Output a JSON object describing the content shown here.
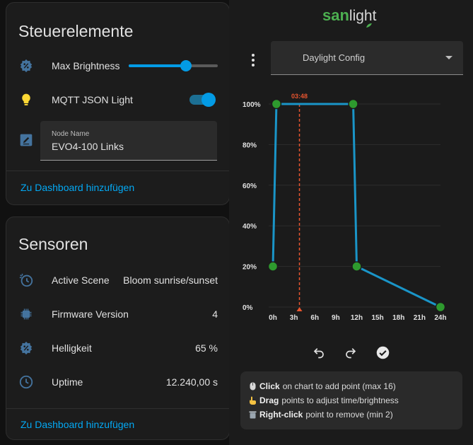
{
  "controls_card": {
    "title": "Steuerelemente",
    "max_brightness": {
      "label": "Max Brightness",
      "value_fraction": 0.64,
      "icon": "brightness-percent-icon"
    },
    "mqtt_light": {
      "label": "MQTT JSON Light",
      "state": "on",
      "icon": "lightbulb-icon"
    },
    "node_name": {
      "label": "Node Name",
      "value": "EVO4-100 Links",
      "icon": "form-textbox-icon"
    },
    "link": "Zu Dashboard hinzufügen"
  },
  "sensors_card": {
    "title": "Sensoren",
    "rows": [
      {
        "label": "Active Scene",
        "value": "Bloom sunrise/sunset",
        "icon": "clock-scene-icon"
      },
      {
        "label": "Firmware Version",
        "value": "4",
        "icon": "chip-icon"
      },
      {
        "label": "Helligkeit",
        "value": "65 %",
        "icon": "brightness-percent-icon"
      },
      {
        "label": "Uptime",
        "value": "12.240,00 s",
        "icon": "clock-outline-icon"
      }
    ],
    "link": "Zu Dashboard hinzufügen"
  },
  "panel": {
    "logo_san": "san",
    "logo_light": "light",
    "select_value": "Daylight Config",
    "help": {
      "line1_bold": "Click",
      "line1_rest": "on chart to add point (max 16)",
      "line2_bold": "Drag",
      "line2_rest": "points to adjust time/brightness",
      "line3_bold": "Right-click",
      "line3_rest": "point to remove (min 2)"
    }
  },
  "colors": {
    "accent": "#039be5",
    "link": "#03a9f4",
    "point": "#2e9a2e",
    "line": "#1a95c8",
    "now": "#e8552f",
    "brand": "#4caf50"
  },
  "chart_data": {
    "type": "line",
    "x_ticks": [
      "0h",
      "3h",
      "6h",
      "9h",
      "12h",
      "15h",
      "18h",
      "21h",
      "24h"
    ],
    "y_ticks": [
      "0%",
      "20%",
      "40%",
      "60%",
      "80%",
      "100%"
    ],
    "xlim": [
      0,
      24
    ],
    "ylim": [
      0,
      100
    ],
    "grid": true,
    "series": [
      {
        "points": [
          [
            0,
            20
          ],
          [
            0.5,
            100
          ],
          [
            11.5,
            100
          ],
          [
            12,
            20
          ],
          [
            24,
            0
          ]
        ]
      }
    ],
    "now_marker": {
      "x": 3.8,
      "label": "03:48"
    }
  }
}
